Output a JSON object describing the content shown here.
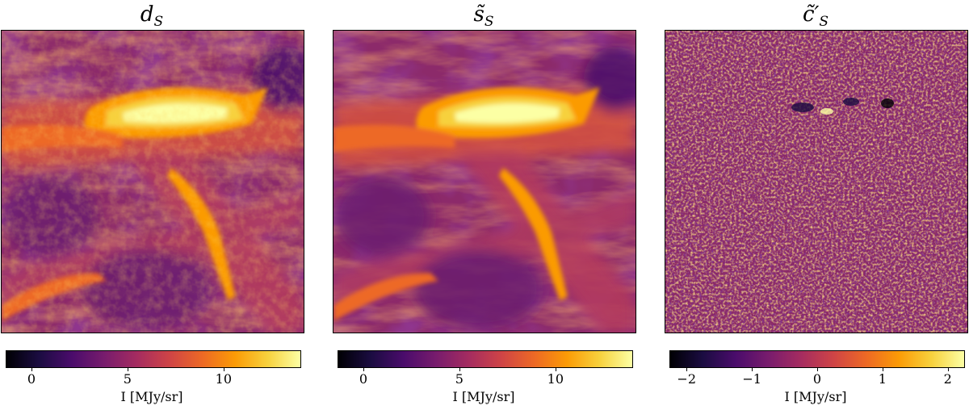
{
  "chart_data": [
    {
      "type": "heatmap",
      "title": "dS",
      "title_main": "d",
      "title_sub": "S",
      "colormap": "inferno",
      "colorbar": {
        "label": "I [MJy/sr]",
        "ticks": [
          0,
          5,
          10
        ],
        "tick_labels": [
          "0",
          "5",
          "10"
        ],
        "range": [
          -1.3,
          14.0
        ]
      }
    },
    {
      "type": "heatmap",
      "title": "s̃S",
      "title_main": "s̃",
      "title_sub": "S",
      "colormap": "inferno",
      "colorbar": {
        "label": "I [MJy/sr]",
        "ticks": [
          0,
          5,
          10
        ],
        "tick_labels": [
          "0",
          "5",
          "10"
        ],
        "range": [
          -1.3,
          14.0
        ]
      }
    },
    {
      "type": "heatmap",
      "title": "c̃′S",
      "title_main": "c̃′",
      "title_sub": "S",
      "colormap": "inferno",
      "colorbar": {
        "label": "I [MJy/sr]",
        "ticks": [
          -2,
          -1,
          0,
          1,
          2
        ],
        "tick_labels": [
          "−2",
          "−1",
          "0",
          "1",
          "2"
        ],
        "range": [
          -2.25,
          2.25
        ]
      }
    }
  ],
  "colors": {
    "inferno": [
      "#000004",
      "#1b0c41",
      "#4a0c6b",
      "#781c6d",
      "#a52c60",
      "#cf4446",
      "#ed6925",
      "#fb9b06",
      "#f7d13d",
      "#fcffa4"
    ]
  }
}
